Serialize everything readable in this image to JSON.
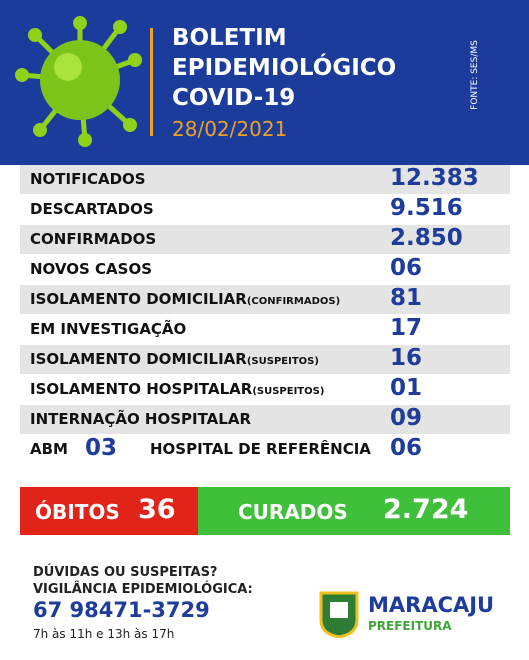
{
  "header": {
    "title_lines": [
      "BOLETIM",
      "EPIDEMIOLÓGICO",
      "COVID-19"
    ],
    "date": "28/02/2021",
    "source": "FONTE: SES/MS"
  },
  "table": {
    "rows": [
      {
        "label": "NOTIFICADOS",
        "value": "12.383"
      },
      {
        "label": "DESCARTADOS",
        "value": "9.516"
      },
      {
        "label": "CONFIRMADOS",
        "value": "2.850"
      },
      {
        "label": "NOVOS CASOS",
        "value": "06"
      },
      {
        "label": "ISOLAMENTO DOMICILIAR",
        "note": "(CONFIRMADOS)",
        "value": "81"
      },
      {
        "label": "EM INVESTIGAÇÃO",
        "value": "17"
      },
      {
        "label": "ISOLAMENTO DOMICILIAR",
        "note": "(SUSPEITOS)",
        "value": "16"
      },
      {
        "label": "ISOLAMENTO HOSPITALAR",
        "note": "(SUSPEITOS)",
        "value": "01"
      },
      {
        "label": "INTERNAÇÃO HOSPITALAR",
        "value": "09"
      }
    ],
    "last_row": {
      "label_a": "ABM",
      "value_a": "03",
      "label_b": "HOSPITAL DE REFERÊNCIA",
      "value_b": "06"
    }
  },
  "outcomes": {
    "deaths_label": "ÓBITOS",
    "deaths_value": "36",
    "recovered_label": "CURADOS",
    "recovered_value": "2.724"
  },
  "footer": {
    "question": "DÚVIDAS OU SUSPEITAS?",
    "service": "VIGILÂNCIA EPIDEMIOLÓGICA:",
    "phone": "67 98471-3729",
    "hours": "7h às 11h e 13h às 17h",
    "city": "MARACAJU",
    "org": "PREFEITURA"
  }
}
